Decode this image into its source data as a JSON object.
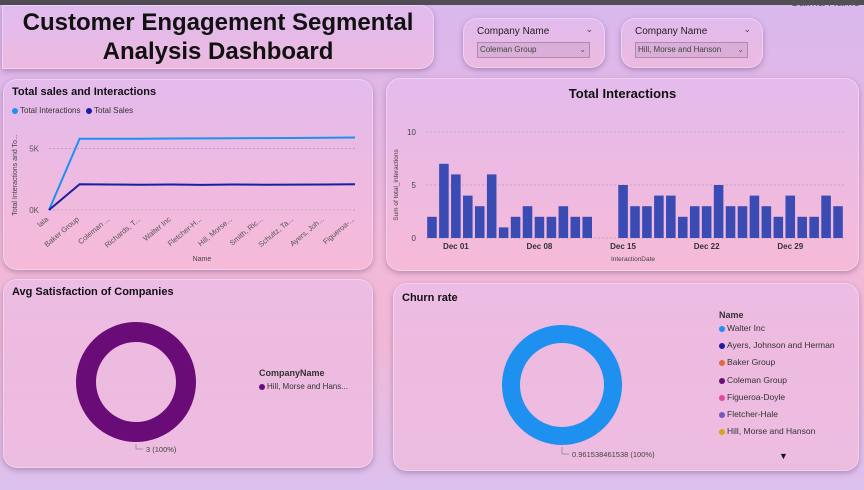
{
  "header": {
    "title_line1": "Customer Engagement Segmental",
    "title_line2": "Analysis Dashboard",
    "user_fragment": "Salma Hame"
  },
  "slicers": [
    {
      "label": "Company Name",
      "value": "Coleman Group"
    },
    {
      "label": "Company Name",
      "value": "Hill, Morse and Hanson"
    }
  ],
  "colors": {
    "interactions": "#1e90ef",
    "sales": "#1a1fa0",
    "bars": "#3b4bb4",
    "satisfaction_donut": "#6a0c78",
    "churn_donut": "#1e90ef"
  },
  "chart_data": [
    {
      "type": "line",
      "title": "Total sales and Interactions",
      "xlabel": "Name",
      "ylabel": "Total Interactions and To...",
      "categories": [
        "lala",
        "Baker Group",
        "Coleman ...",
        "Richards, T...",
        "Walter Inc",
        "Fletcher-H...",
        "Hill, Morse...",
        "Smith, Ric...",
        "Schultz, Ta...",
        "Ayers, Joh...",
        "Figueroa-..."
      ],
      "y_ticks": [
        "0K",
        "5K"
      ],
      "ylim": [
        0,
        7000
      ],
      "legend_position": "top-left",
      "series": [
        {
          "name": "Total Interactions",
          "values": [
            0,
            5800,
            5800,
            5800,
            5820,
            5830,
            5840,
            5850,
            5860,
            5880,
            5900
          ]
        },
        {
          "name": "Total Sales",
          "values": [
            0,
            2100,
            2080,
            2060,
            2080,
            2050,
            2080,
            2060,
            2070,
            2080,
            2100
          ]
        }
      ]
    },
    {
      "type": "bar",
      "title": "Total Interactions",
      "xlabel": "InteractionDate",
      "ylabel": "Sum of total_interactions",
      "y_ticks": [
        "0",
        "5",
        "10"
      ],
      "ylim": [
        0,
        10
      ],
      "x_ticks": [
        "Dec 01",
        "Dec 08",
        "Dec 15",
        "Dec 22",
        "Dec 29"
      ],
      "x_tick_day_index": [
        3,
        10,
        17,
        24,
        31
      ],
      "values": [
        2,
        7,
        6,
        4,
        3,
        6,
        1,
        2,
        3,
        2,
        2,
        3,
        2,
        2,
        null,
        null,
        5,
        3,
        3,
        4,
        4,
        2,
        3,
        3,
        5,
        3,
        3,
        4,
        3,
        2,
        4,
        2,
        2,
        4,
        3
      ]
    },
    {
      "type": "pie",
      "title": "Avg Satisfaction of Companies",
      "legend_title": "CompanyName",
      "slices": [
        {
          "label": "Hill, Morse and Hans...",
          "value": 3
        }
      ],
      "data_label": "3 (100%)"
    },
    {
      "type": "pie",
      "title": "Churn rate",
      "legend_title": "Name",
      "legend_items": [
        {
          "label": "Walter Inc",
          "color": "#1e90ef"
        },
        {
          "label": "Ayers, Johnson and Herman",
          "color": "#1a1fa0"
        },
        {
          "label": "Baker Group",
          "color": "#e8663c"
        },
        {
          "label": "Coleman Group",
          "color": "#6a0c78"
        },
        {
          "label": "Figueroa-Doyle",
          "color": "#e0489a"
        },
        {
          "label": "Fletcher-Hale",
          "color": "#7b52c8"
        },
        {
          "label": "Hill, Morse and Hanson",
          "color": "#d8a418"
        }
      ],
      "slices": [
        {
          "label": "Walter Inc",
          "value": 0.961538461538
        }
      ],
      "data_label": "0.961538461538 (100%)"
    }
  ]
}
